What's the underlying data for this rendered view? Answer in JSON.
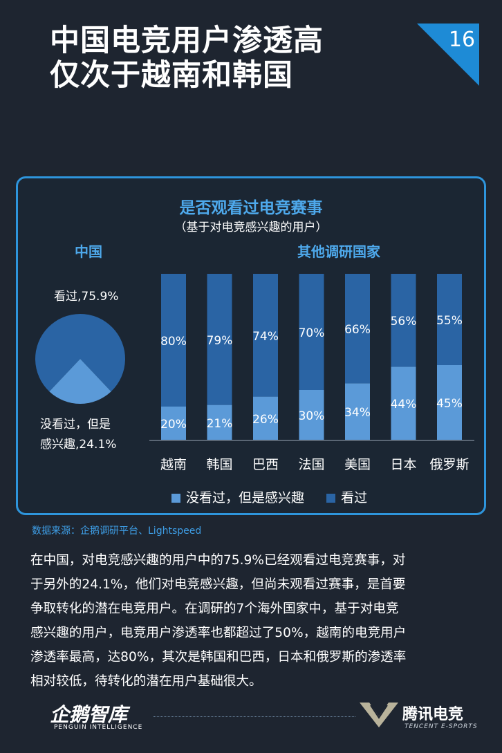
{
  "header": {
    "title_line1": "中国电竞用户渗透高",
    "title_line2": "仅次于越南和韩国",
    "page_number": "16"
  },
  "chart_data": {
    "type": "bar",
    "stacked": true,
    "title": "是否观看过电竞赛事",
    "subtitle": "（基于对电竞感兴趣的用户）",
    "section_china": "中国",
    "section_others": "其他调研国家",
    "china_pie": {
      "type": "pie",
      "slices": [
        {
          "name": "看过",
          "value": 75.9,
          "label": "看过,75.9%"
        },
        {
          "name": "没看过，但是感兴趣",
          "value": 24.1,
          "label_line1": "没看过，但是",
          "label_line2": "感兴趣,24.1%"
        }
      ]
    },
    "categories": [
      "越南",
      "韩国",
      "巴西",
      "法国",
      "美国",
      "日本",
      "俄罗斯"
    ],
    "series": [
      {
        "name": "没看过，但是感兴趣",
        "values": [
          20,
          21,
          26,
          30,
          34,
          44,
          45
        ],
        "labels": [
          "20%",
          "21%",
          "26%",
          "30%",
          "34%",
          "44%",
          "45%"
        ]
      },
      {
        "name": "看过",
        "values": [
          80,
          79,
          74,
          70,
          66,
          56,
          55
        ],
        "labels": [
          "80%",
          "79%",
          "74%",
          "70%",
          "66%",
          "56%",
          "55%"
        ]
      }
    ],
    "ylim": [
      0,
      100
    ],
    "legend": [
      "没看过，但是感兴趣",
      "看过"
    ]
  },
  "colors": {
    "watched": "#2a64a4",
    "not_watched": "#5b9ad8",
    "accent": "#1e8bd6"
  },
  "source": "数据来源：企鹅调研平台、Lightspeed",
  "body_lines": [
    "在中国，对电竞感兴趣的用户中的75.9%已经观看过电竞赛事，对",
    "于另外的24.1%，他们对电竞感兴趣，但尚未观看过赛事，是首要",
    "争取转化的潜在电竞用户。在调研的7个海外国家中，基于对电竞",
    "感兴趣的用户，电竞用户渗透率也都超过了50%，越南的电竞用户",
    "渗透率最高，达80%，其次是韩国和巴西，日本和俄罗斯的渗透率",
    "相对较低，待转化的潜在用户基础很大。"
  ],
  "footer": {
    "left_logo": "企鹅智库",
    "left_logo_sub": "PENGUIN INTELLIGENCE",
    "right_logo": "腾讯电竞",
    "right_logo_sub": "TENCENT E-SPORTS",
    "right_logo_icon": "v-shield-icon"
  }
}
